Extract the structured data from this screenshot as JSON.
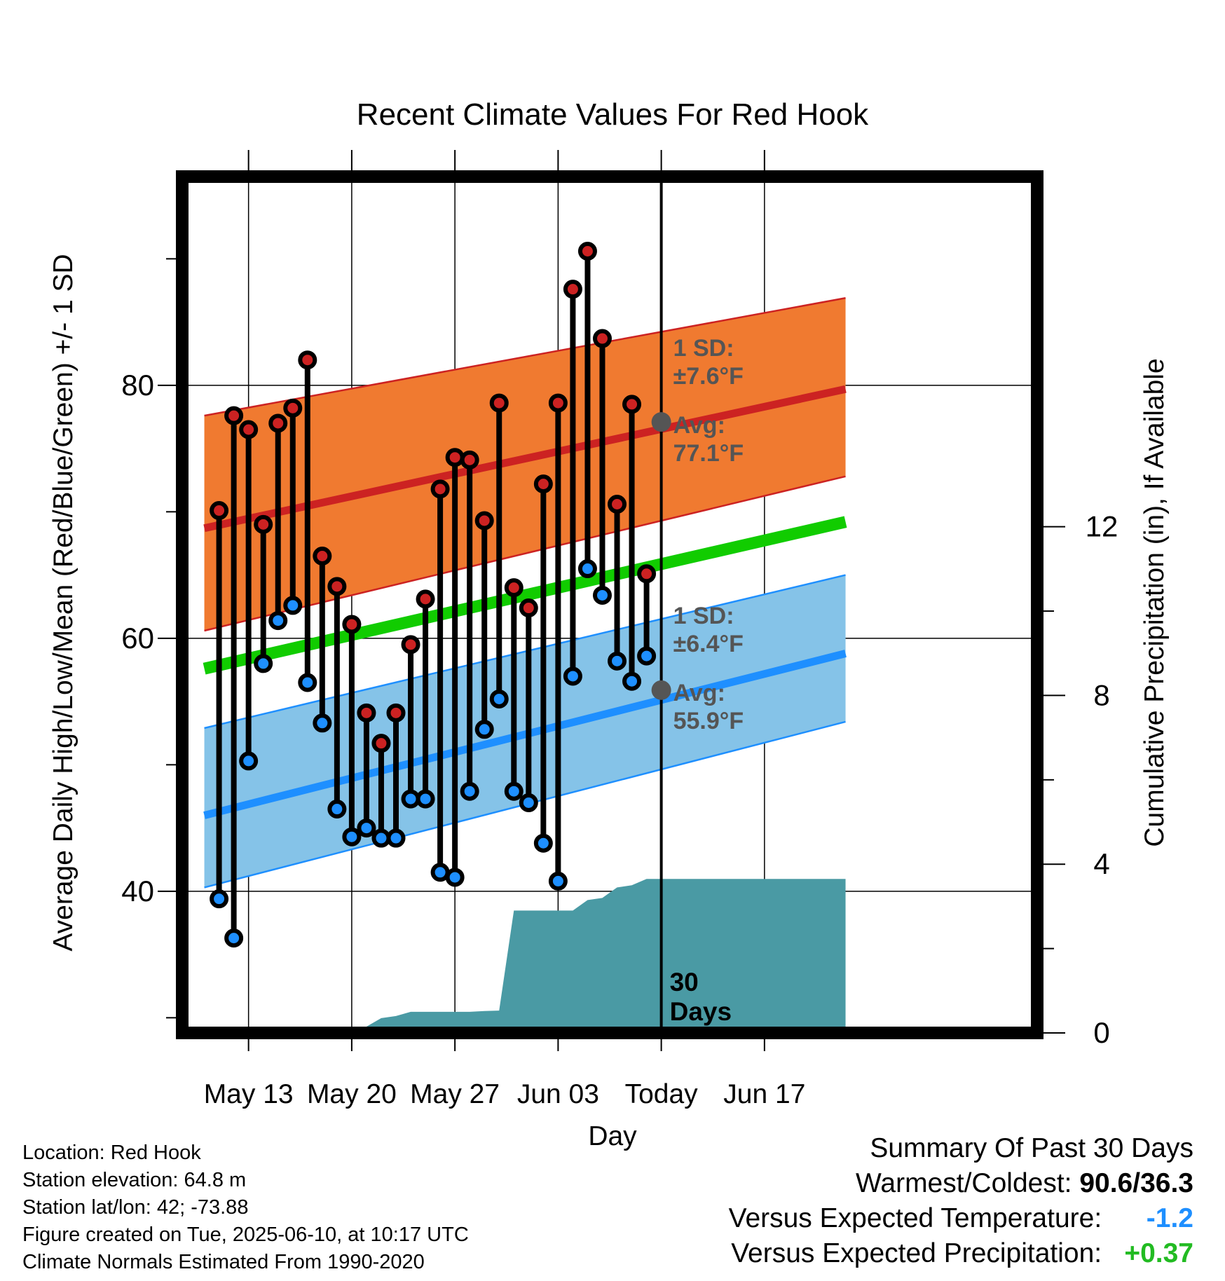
{
  "chart_data": {
    "type": "line",
    "title": "Recent Climate Values For Red Hook",
    "xlabel": "Day",
    "ylabel": "Average Daily High/Low/Mean (Red/Blue/Green) +/- 1 SD",
    "y2label": "Cumulative Precipitation (in), If Available",
    "x_range": [
      -4.5,
      53.5
    ],
    "ylim": [
      28.8,
      96.5
    ],
    "y2lim": [
      0,
      20.3
    ],
    "x_ticks": [
      {
        "x": 0,
        "label": "May 13"
      },
      {
        "x": 7,
        "label": "May 20"
      },
      {
        "x": 14,
        "label": "May 27"
      },
      {
        "x": 21,
        "label": "Jun 03"
      },
      {
        "x": 28,
        "label": "Today"
      },
      {
        "x": 35,
        "label": "Jun 17"
      }
    ],
    "y_ticks": [
      40,
      60,
      80
    ],
    "y2_ticks": [
      0,
      4,
      8,
      12
    ],
    "grid": true,
    "today_line_x": 28,
    "today_label": [
      "30",
      "Days"
    ],
    "colors": {
      "high": "#cc2222",
      "low": "#1e8fff",
      "mean": "#11cc00",
      "high_band": "#f07a30",
      "low_band": "#85c3e8",
      "precip": "#4a9aa4",
      "avg_dot": "#555555",
      "annotation": "#555555"
    },
    "normals": {
      "x": [
        -3,
        40.5
      ],
      "high_avg": [
        68.7,
        79.7
      ],
      "high_sd_lower": [
        60.6,
        72.8
      ],
      "high_sd_upper": [
        77.6,
        86.9
      ],
      "low_avg": [
        46.0,
        58.8
      ],
      "low_sd_lower": [
        40.3,
        53.4
      ],
      "low_sd_upper": [
        52.9,
        65.0
      ],
      "mean_avg": [
        57.6,
        69.2
      ]
    },
    "annotations": {
      "high_sd": "1 SD:",
      "high_sd_value": "±7.6°F",
      "high_avg_label": "Avg:",
      "high_avg_value": "77.1°F",
      "low_sd": "1 SD:",
      "low_sd_value": "±6.4°F",
      "low_avg_label": "Avg:",
      "low_avg_value": "55.9°F",
      "high_avg_point": 77.1,
      "low_avg_point": 55.9
    },
    "days": [
      -2,
      -1,
      0,
      1,
      2,
      3,
      4,
      5,
      6,
      7,
      8,
      9,
      10,
      11,
      12,
      13,
      14,
      15,
      16,
      17,
      18,
      19,
      20,
      21,
      22,
      23,
      24,
      25,
      26,
      27
    ],
    "highs": [
      70.1,
      77.6,
      76.5,
      69.0,
      77.0,
      78.2,
      82.0,
      66.5,
      64.1,
      61.1,
      54.1,
      51.7,
      54.1,
      59.5,
      63.1,
      71.8,
      74.3,
      74.1,
      69.3,
      78.6,
      64.0,
      62.4,
      72.2,
      78.6,
      87.6,
      90.6,
      83.7,
      70.6,
      78.5,
      65.1
    ],
    "lows": [
      39.4,
      36.3,
      50.3,
      58.0,
      61.4,
      62.6,
      56.5,
      53.3,
      46.5,
      44.3,
      45.0,
      44.2,
      44.2,
      47.3,
      47.3,
      41.5,
      41.1,
      47.9,
      52.8,
      55.2,
      47.9,
      47.0,
      43.8,
      40.8,
      57.0,
      65.5,
      63.4,
      58.2,
      56.6,
      58.6
    ],
    "precip_cumulative": {
      "x": [
        3.8,
        7,
        8,
        9,
        10,
        11,
        12,
        13,
        14,
        15,
        16,
        17,
        18,
        19,
        20,
        21,
        22,
        23,
        24,
        25,
        26,
        27,
        28,
        35,
        40.5
      ],
      "y": [
        0,
        0,
        0.15,
        0.35,
        0.4,
        0.5,
        0.5,
        0.5,
        0.5,
        0.5,
        0.52,
        0.53,
        2.9,
        2.9,
        2.9,
        2.9,
        2.9,
        3.15,
        3.2,
        3.45,
        3.5,
        3.65,
        3.65,
        3.65,
        3.65
      ]
    }
  },
  "info": {
    "location": "Location: Red Hook",
    "elevation": "Station elevation: 64.8 m",
    "latlon": "Station lat/lon: 42; -73.88",
    "created": "Figure created on Tue, 2025-06-10, at 10:17 UTC",
    "normals": "Climate Normals Estimated From 1990-2020"
  },
  "summary": {
    "title": "Summary Of Past 30 Days",
    "warm_cold_label": "Warmest/Coldest:",
    "warm_cold_value": "90.6/36.3",
    "temp_label": "Versus Expected Temperature:",
    "temp_value": "-1.2",
    "temp_color": "#1e8fff",
    "precip_label": "Versus Expected Precipitation:",
    "precip_value": "+0.37",
    "precip_color": "#22bb22"
  }
}
